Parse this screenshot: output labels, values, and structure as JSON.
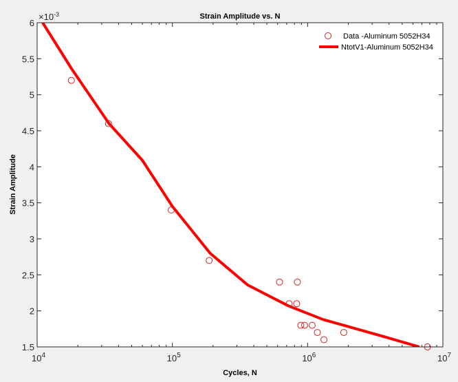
{
  "chart_data": {
    "type": "scatter",
    "title": "Strain Amplitude vs. N",
    "xlabel": "Cycles, N",
    "ylabel": "Strain Amplitude",
    "xscale": "log",
    "xlim": [
      10000,
      10000000
    ],
    "ylim": [
      0.0015,
      0.006
    ],
    "y_exponent_label": "×10^-3",
    "x_ticks": [
      {
        "base": "10",
        "exp": "4"
      },
      {
        "base": "10",
        "exp": "5"
      },
      {
        "base": "10",
        "exp": "6"
      },
      {
        "base": "10",
        "exp": "7"
      }
    ],
    "y_ticks": [
      "1.5",
      "2",
      "2.5",
      "3",
      "3.5",
      "4",
      "4.5",
      "5",
      "5.5",
      "6"
    ],
    "grid": false,
    "legend_position": "northeast",
    "series": [
      {
        "name": "Data -Aluminum 5052H34",
        "style": "markers-open-circle",
        "color": "#d62020",
        "x": [
          17900,
          33700,
          98000,
          187000,
          620000,
          840000,
          730000,
          830000,
          890000,
          950000,
          1080000,
          1180000,
          1320000,
          1850000,
          7700000
        ],
        "y": [
          0.0052,
          0.0046,
          0.0034,
          0.0027,
          0.0024,
          0.0024,
          0.0021,
          0.0021,
          0.0018,
          0.0018,
          0.0018,
          0.0017,
          0.0016,
          0.0017,
          0.0015
        ]
      },
      {
        "name": "NtotV1-Aluminum 5052H34",
        "style": "line",
        "color": "#ff0000",
        "x": [
          11000,
          18000,
          34000,
          60000,
          100000,
          190000,
          360000,
          720000,
          1300000,
          3700000,
          6700000
        ],
        "y": [
          0.006,
          0.00536,
          0.0046,
          0.00409,
          0.00345,
          0.0028,
          0.00236,
          0.00207,
          0.00188,
          0.00164,
          0.0015
        ]
      }
    ]
  }
}
